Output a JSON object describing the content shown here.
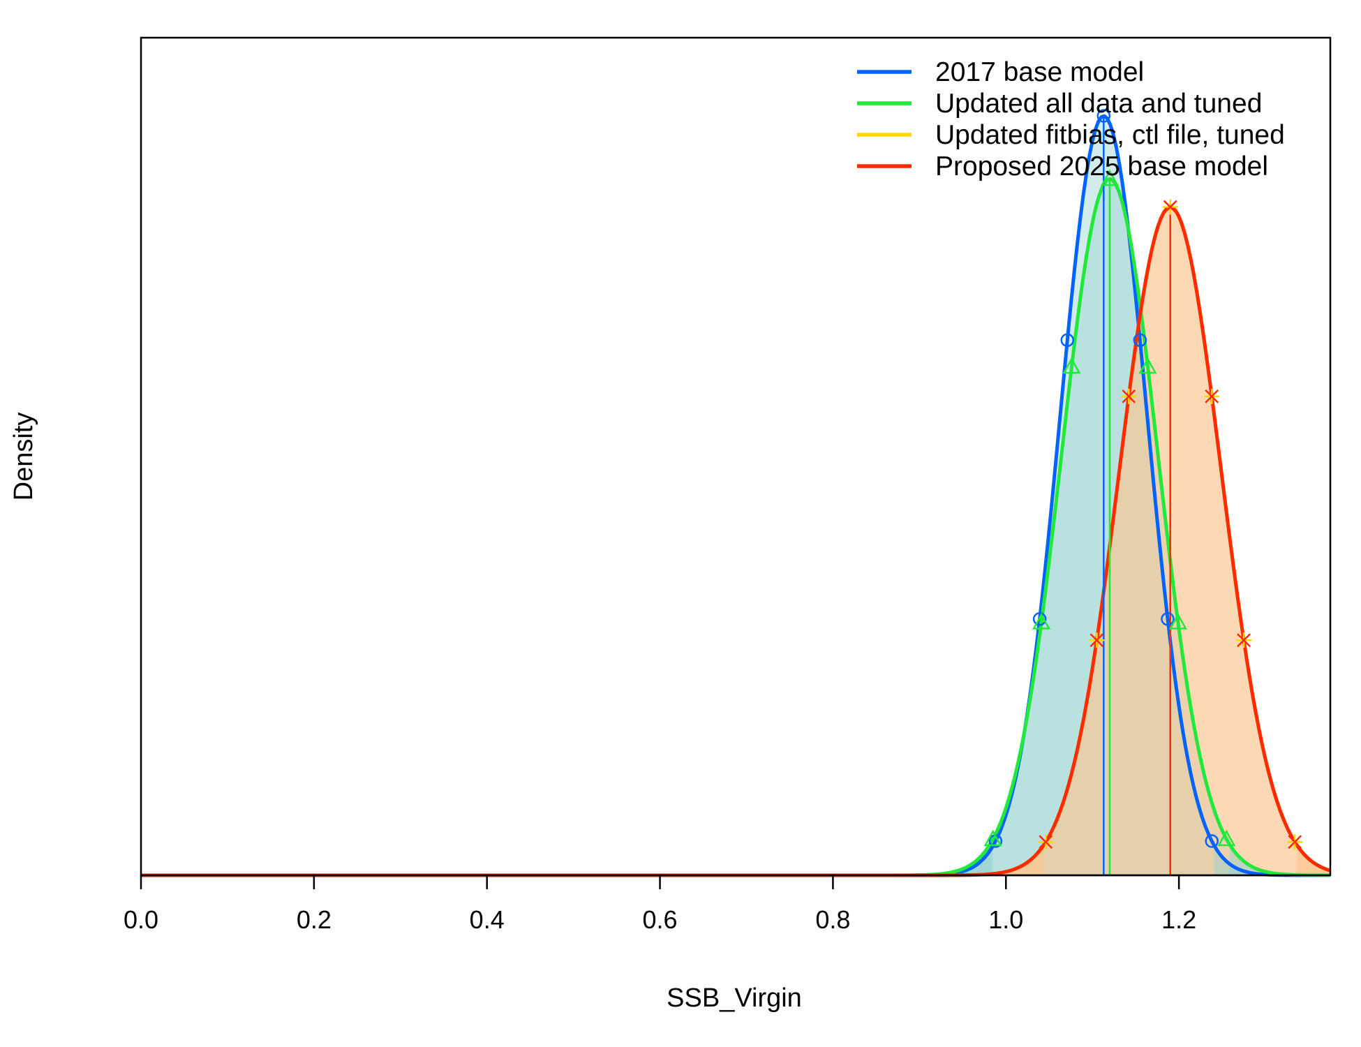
{
  "chart_data": {
    "type": "line",
    "xlabel": "SSB_Virgin",
    "ylabel": "Density",
    "xlim": [
      0,
      1.375
    ],
    "ylim": [
      0,
      1.0
    ],
    "x_ticks": [
      0.0,
      0.2,
      0.4,
      0.6,
      0.8,
      1.0,
      1.2
    ],
    "x_tick_labels": [
      "0.0",
      "0.2",
      "0.4",
      "0.6",
      "0.8",
      "1.0",
      "1.2"
    ],
    "y_axis_values_shown": false,
    "grid": false,
    "legend_position": "top-right",
    "series": [
      {
        "name": "2017 base model",
        "color": "#0063ff",
        "fill": "#98d4d2",
        "marker": "circle",
        "mean": 1.113,
        "sd": 0.0502,
        "peak_density": 1.0,
        "marker_x": [
          0.988,
          1.039,
          1.071,
          1.113,
          1.155,
          1.187,
          1.238
        ],
        "shaded_tails": [
          0.985,
          1.241
        ]
      },
      {
        "name": "Updated all data and tuned",
        "color": "#22e83c",
        "fill": "#98d4d2",
        "marker": "triangle",
        "mean": 1.12,
        "sd": 0.0555,
        "peak_density": 0.917,
        "marker_x": [
          0.985,
          1.041,
          1.076,
          1.12,
          1.164,
          1.199,
          1.255
        ],
        "shaded_tails": [
          0.983,
          1.258
        ]
      },
      {
        "name": "Updated fitbias, ctl file, tuned",
        "color": "#ffd700",
        "fill": "#fbc894",
        "marker": "plus",
        "mean": 1.19,
        "sd": 0.0588,
        "peak_density": 0.88,
        "marker_x": [
          1.046,
          1.105,
          1.142,
          1.19,
          1.238,
          1.275,
          1.334
        ],
        "shaded_tails": [
          1.044,
          1.336
        ]
      },
      {
        "name": "Proposed 2025 base model",
        "color": "#ff2a00",
        "fill": "#fbc894",
        "marker": "cross",
        "mean": 1.19,
        "sd": 0.0588,
        "peak_density": 0.88,
        "marker_x": [
          1.046,
          1.105,
          1.142,
          1.19,
          1.238,
          1.275,
          1.334
        ],
        "shaded_tails": [
          1.044,
          1.336
        ]
      }
    ]
  }
}
